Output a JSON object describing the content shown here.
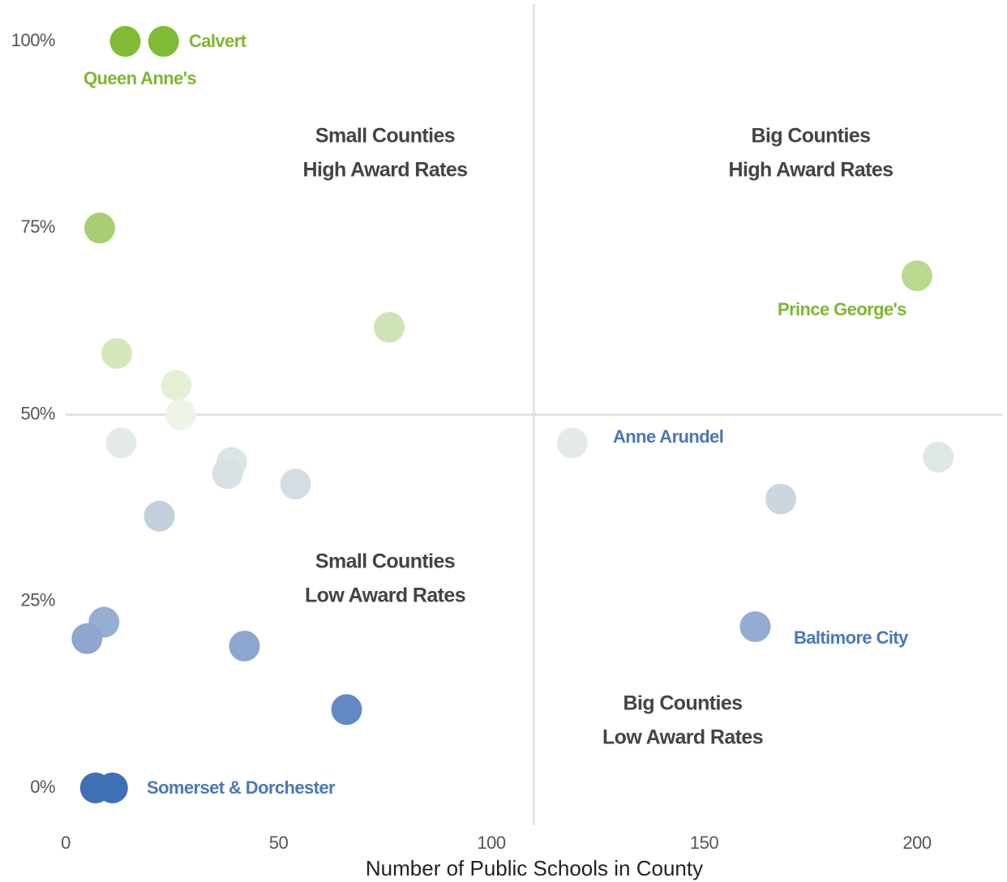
{
  "chart_data": {
    "type": "scatter",
    "x_label": "Number of Public Schools in County",
    "xlim": [
      0,
      220
    ],
    "ylim": [
      -5,
      105
    ],
    "xticks": [
      0,
      50,
      100,
      150,
      200
    ],
    "yticks": [
      {
        "value": 0,
        "label": "0%"
      },
      {
        "value": 25,
        "label": "25%"
      },
      {
        "value": 50,
        "label": "50%"
      },
      {
        "value": 75,
        "label": "75%"
      },
      {
        "value": 100,
        "label": "100%"
      }
    ],
    "xref": 110,
    "yref": 50,
    "x": [
      14,
      23,
      8,
      200,
      76,
      12,
      26,
      27,
      13,
      119,
      205,
      39,
      38,
      54,
      168,
      22,
      9,
      5,
      42,
      162,
      66,
      7,
      11
    ],
    "values": [
      100,
      100,
      75,
      68.6,
      61.7,
      58.2,
      53.9,
      50,
      46.2,
      46.2,
      44.3,
      43.6,
      42.1,
      40.7,
      38.7,
      36.4,
      22.2,
      20,
      19,
      21.6,
      10.5,
      0,
      0
    ],
    "colors": [
      "#80bb34",
      "#80bb34",
      "#a5cf72",
      "#b9da8f",
      "#cfe4b5",
      "#d4e8bc",
      "#e4f0d6",
      "#eef4e6",
      "#e4ebe6",
      "#e4ebe6",
      "#dfe6e6",
      "#dde5e5",
      "#d8e0e3",
      "#d4dde3",
      "#ccd6df",
      "#c3cfdc",
      "#96aed2",
      "#8fa7cf",
      "#8da6cf",
      "#93abd1",
      "#6489c2",
      "#3f6fb5",
      "#3f6fb5"
    ],
    "annotations": [
      {
        "text": "Calvert",
        "color": "#7db72f"
      },
      {
        "text": "Queen Anne's",
        "color": "#7db72f"
      },
      {
        "text": "Prince George's",
        "color": "#7db72f"
      },
      {
        "text": "Anne Arundel",
        "color": "#4a78b8"
      },
      {
        "text": "Baltimore City",
        "color": "#4a78b8"
      },
      {
        "text": "Somerset & Dorchester",
        "color": "#4a78b8"
      }
    ],
    "quadrant_labels": [
      {
        "lines": [
          "Small Counties",
          "High Award Rates"
        ]
      },
      {
        "lines": [
          "Big Counties",
          "High Award Rates"
        ]
      },
      {
        "lines": [
          "Small Counties",
          "Low Award Rates"
        ]
      },
      {
        "lines": [
          "Big Counties",
          "Low Award Rates"
        ]
      }
    ]
  }
}
